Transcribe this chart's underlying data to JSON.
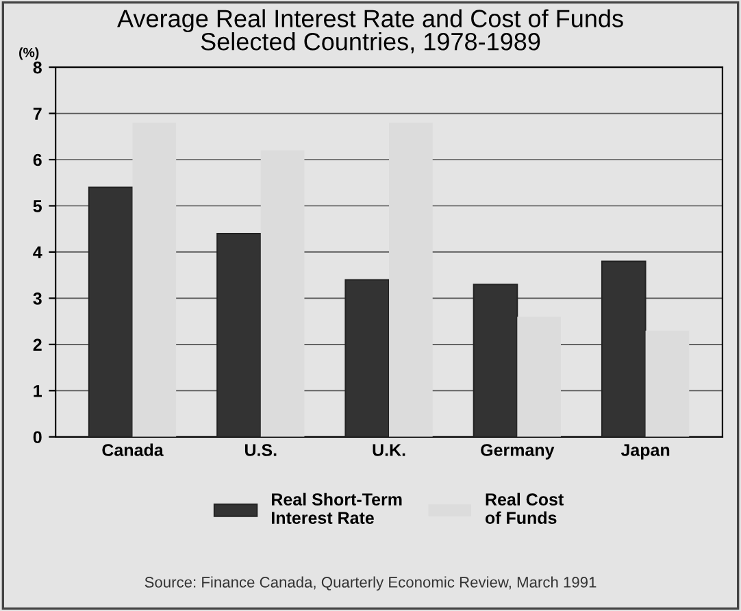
{
  "chart_data": {
    "type": "bar",
    "title": "Average Real Interest Rate and Cost of Funds\nSelected Countries, 1978-1989",
    "ylabel": "(%)",
    "categories": [
      "Canada",
      "U.S.",
      "U.K.",
      "Germany",
      "Japan"
    ],
    "series": [
      {
        "name": "Real Short-Term\nInterest Rate",
        "color": "#333333",
        "values": [
          5.4,
          4.4,
          3.4,
          3.3,
          3.8
        ]
      },
      {
        "name": "Real Cost\nof Funds",
        "color": "#dcdcdc",
        "values": [
          6.8,
          6.2,
          6.8,
          2.6,
          2.3
        ]
      }
    ],
    "ylim": [
      0,
      8
    ],
    "yticks": [
      0,
      1,
      2,
      3,
      4,
      5,
      6,
      7,
      8
    ],
    "grid": "y",
    "legend": "bottom",
    "annotations": [
      "Source: Finance Canada, Quarterly Economic Review, March 1991"
    ]
  }
}
